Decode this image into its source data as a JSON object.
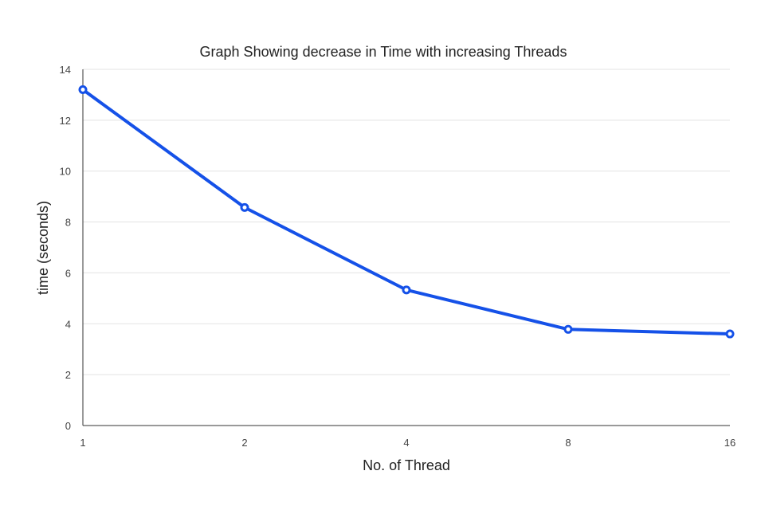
{
  "chart_data": {
    "type": "line",
    "title": "Graph Showing decrease in Time with increasing Threads",
    "xlabel": "No. of Thread",
    "ylabel": "time (seconds)",
    "categories": [
      "1",
      "2",
      "4",
      "8",
      "16"
    ],
    "series": [
      {
        "values": [
          13.2,
          8.57,
          5.33,
          3.78,
          3.6
        ],
        "color": "#1551e8"
      }
    ],
    "ylim": [
      0,
      14
    ],
    "yticks": [
      "0",
      "2",
      "4",
      "6",
      "8",
      "10",
      "12",
      "14"
    ],
    "grid": true,
    "legend": "none"
  }
}
